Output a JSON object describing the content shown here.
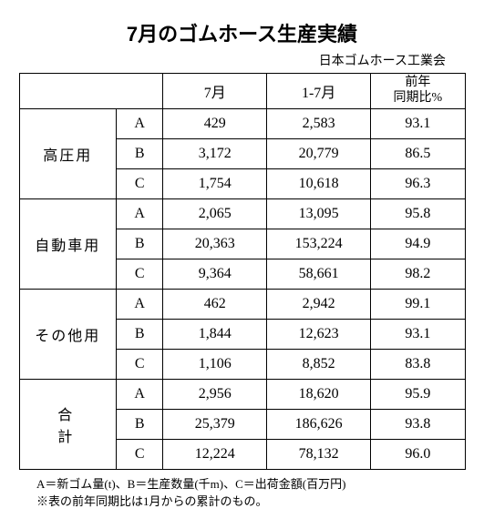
{
  "title": "7月のゴムホース生産実績",
  "subtitle": "日本ゴムホース工業会",
  "headers": {
    "blank": "",
    "col1": "7月",
    "col2": "1-7月",
    "col3_line1": "前年",
    "col3_line2": "同期比%"
  },
  "groups": [
    {
      "label": "高圧用",
      "rows": [
        {
          "abc": "A",
          "v1": "429",
          "v2": "2,583",
          "pct": "93.1"
        },
        {
          "abc": "B",
          "v1": "3,172",
          "v2": "20,779",
          "pct": "86.5"
        },
        {
          "abc": "C",
          "v1": "1,754",
          "v2": "10,618",
          "pct": "96.3"
        }
      ]
    },
    {
      "label": "自動車用",
      "rows": [
        {
          "abc": "A",
          "v1": "2,065",
          "v2": "13,095",
          "pct": "95.8"
        },
        {
          "abc": "B",
          "v1": "20,363",
          "v2": "153,224",
          "pct": "94.9"
        },
        {
          "abc": "C",
          "v1": "9,364",
          "v2": "58,661",
          "pct": "98.2"
        }
      ]
    },
    {
      "label": "その他用",
      "rows": [
        {
          "abc": "A",
          "v1": "462",
          "v2": "2,942",
          "pct": "99.1"
        },
        {
          "abc": "B",
          "v1": "1,844",
          "v2": "12,623",
          "pct": "93.1"
        },
        {
          "abc": "C",
          "v1": "1,106",
          "v2": "8,852",
          "pct": "83.8"
        }
      ]
    },
    {
      "label": "合　計",
      "totalRow": true,
      "rows": [
        {
          "abc": "A",
          "v1": "2,956",
          "v2": "18,620",
          "pct": "95.9"
        },
        {
          "abc": "B",
          "v1": "25,379",
          "v2": "186,626",
          "pct": "93.8"
        },
        {
          "abc": "C",
          "v1": "12,224",
          "v2": "78,132",
          "pct": "96.0"
        }
      ]
    }
  ],
  "footnote1": "A＝新ゴム量(t)、B＝生産数量(千m)、C＝出荷金額(百万円)",
  "footnote2": "※表の前年同期比は1月からの累計のもの。"
}
